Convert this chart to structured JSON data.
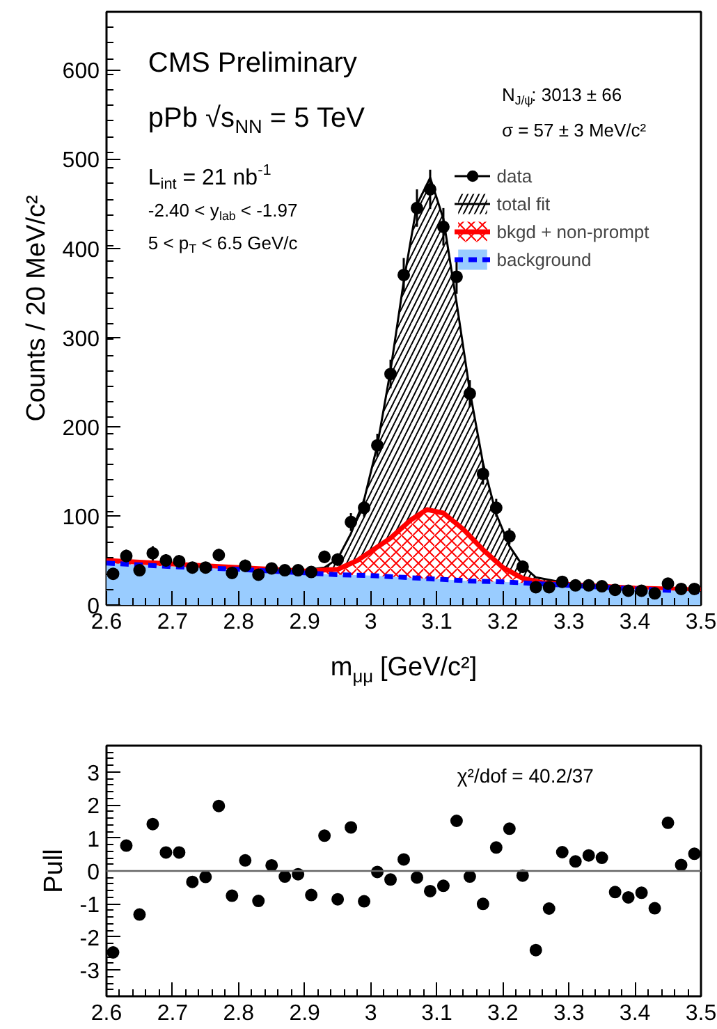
{
  "chart_data": [
    {
      "type": "scatter",
      "xlabel": "m$_{μμ}$ [GeV/c²]",
      "ylabel": "Counts / 20 MeV/c²",
      "xlim": [
        2.6,
        3.5
      ],
      "ylim": [
        0,
        665
      ],
      "xticks": [
        2.6,
        2.7,
        2.8,
        2.9,
        3,
        3.1,
        3.2,
        3.3,
        3.4,
        3.5
      ],
      "yticks": [
        0,
        100,
        200,
        300,
        400,
        500,
        600
      ],
      "grid": false,
      "legend": "top right",
      "annotations": [
        "CMS Preliminary",
        "pPb √s$_{NN}$ = 5 TeV",
        "L$_{int}$ = 21 nb$^{-1}$",
        "-2.40 < y$_{lab}$ < -1.97",
        "5 < p$_{T}$ < 6.5 GeV/c",
        "N$_{J/ψ}$: 3013 ± 66",
        "σ = 57 ± 3 MeV/c²"
      ],
      "series": [
        {
          "name": "data",
          "type": "scatter",
          "marker": "circle",
          "color": "#000000",
          "x": [
            2.61,
            2.63,
            2.65,
            2.67,
            2.69,
            2.71,
            2.73,
            2.75,
            2.77,
            2.79,
            2.81,
            2.83,
            2.85,
            2.87,
            2.89,
            2.91,
            2.93,
            2.95,
            2.97,
            2.99,
            3.01,
            3.03,
            3.05,
            3.07,
            3.09,
            3.11,
            3.13,
            3.15,
            3.17,
            3.19,
            3.21,
            3.23,
            3.25,
            3.27,
            3.29,
            3.31,
            3.33,
            3.35,
            3.37,
            3.39,
            3.41,
            3.43,
            3.45,
            3.47,
            3.49
          ],
          "values": [
            35,
            55,
            39,
            58,
            50,
            49,
            42,
            42,
            56,
            36,
            44,
            34,
            41,
            39,
            39,
            37,
            54,
            51,
            93,
            109,
            179,
            259,
            370,
            445,
            466,
            424,
            368,
            237,
            147,
            109,
            77,
            43,
            20,
            20,
            26,
            22,
            22,
            21,
            17,
            16,
            16,
            13,
            24,
            18,
            18
          ],
          "errors": [
            6,
            7,
            6,
            8,
            7,
            7,
            6,
            6,
            7,
            6,
            7,
            6,
            6,
            6,
            6,
            6,
            7,
            7,
            10,
            10,
            13,
            16,
            19,
            21,
            22,
            21,
            19,
            15,
            12,
            10,
            9,
            7,
            4,
            4,
            5,
            5,
            5,
            5,
            4,
            4,
            4,
            4,
            5,
            4,
            4
          ]
        },
        {
          "name": "total fit",
          "type": "area",
          "color": "#000000",
          "x": [
            2.6,
            2.9,
            2.93,
            2.95,
            2.97,
            2.99,
            3.01,
            3.03,
            3.05,
            3.07,
            3.09,
            3.11,
            3.13,
            3.15,
            3.17,
            3.19,
            3.21,
            3.23,
            3.25,
            3.3,
            3.4,
            3.5
          ],
          "values": [
            50,
            39,
            42,
            52,
            80,
            118,
            179,
            263,
            363,
            449,
            479,
            433,
            339,
            240,
            159,
            102,
            66,
            44,
            31,
            24,
            20,
            17
          ]
        },
        {
          "name": "bkgd + non-prompt",
          "type": "area",
          "color": "#ff0000",
          "x": [
            2.6,
            2.7,
            2.8,
            2.9,
            2.95,
            2.98,
            3.0,
            3.03,
            3.06,
            3.085,
            3.11,
            3.14,
            3.17,
            3.2,
            3.23,
            3.26,
            3.3,
            3.4,
            3.5
          ],
          "values": [
            50,
            46,
            42,
            38,
            40,
            50,
            60,
            75,
            95,
            107,
            103,
            85,
            62,
            42,
            30,
            25,
            23,
            19,
            17
          ]
        },
        {
          "name": "background",
          "type": "area",
          "color": "#99ccff",
          "line_style": "dashed",
          "x": [
            2.6,
            2.7,
            2.8,
            2.9,
            2.95,
            3.0,
            3.05,
            3.1,
            3.15,
            3.2,
            3.25,
            3.3,
            3.4,
            3.5
          ],
          "values": [
            47,
            43,
            40,
            36,
            34,
            33,
            31,
            29,
            27,
            26,
            24,
            22,
            18,
            15
          ]
        }
      ]
    },
    {
      "type": "scatter",
      "ylabel": "Pull",
      "xlim": [
        2.6,
        3.5
      ],
      "ylim": [
        -3.8,
        3.8
      ],
      "xticks": [
        2.6,
        2.7,
        2.8,
        2.9,
        3,
        3.1,
        3.2,
        3.3,
        3.4,
        3.5
      ],
      "yticks": [
        -3,
        -2,
        -1,
        0,
        1,
        2,
        3
      ],
      "grid": false,
      "marker": "circle",
      "annotations": [
        "χ²/dof = 40.2/37"
      ],
      "ref_lines": [
        {
          "axis": "y",
          "value": 0,
          "color": "#666666"
        }
      ],
      "x": [
        2.61,
        2.63,
        2.65,
        2.67,
        2.69,
        2.71,
        2.73,
        2.75,
        2.77,
        2.79,
        2.81,
        2.83,
        2.85,
        2.87,
        2.89,
        2.91,
        2.93,
        2.95,
        2.97,
        2.99,
        3.01,
        3.03,
        3.05,
        3.07,
        3.09,
        3.11,
        3.13,
        3.15,
        3.17,
        3.19,
        3.21,
        3.23,
        3.25,
        3.27,
        3.29,
        3.31,
        3.33,
        3.35,
        3.37,
        3.39,
        3.41,
        3.43,
        3.45,
        3.47,
        3.49
      ],
      "series": [
        {
          "color": "#000000",
          "values": [
            -2.47,
            0.77,
            -1.32,
            1.42,
            0.56,
            0.56,
            -0.33,
            -0.18,
            1.97,
            -0.75,
            0.32,
            -0.91,
            0.17,
            -0.17,
            -0.1,
            -0.73,
            1.07,
            -0.86,
            1.32,
            -0.92,
            -0.03,
            -0.26,
            0.35,
            -0.2,
            -0.61,
            -0.45,
            1.52,
            -0.17,
            -1.0,
            0.71,
            1.28,
            -0.14,
            -2.4,
            -1.14,
            0.57,
            0.29,
            0.47,
            0.4,
            -0.64,
            -0.8,
            -0.66,
            -1.13,
            1.46,
            0.18,
            0.52
          ]
        }
      ]
    }
  ]
}
